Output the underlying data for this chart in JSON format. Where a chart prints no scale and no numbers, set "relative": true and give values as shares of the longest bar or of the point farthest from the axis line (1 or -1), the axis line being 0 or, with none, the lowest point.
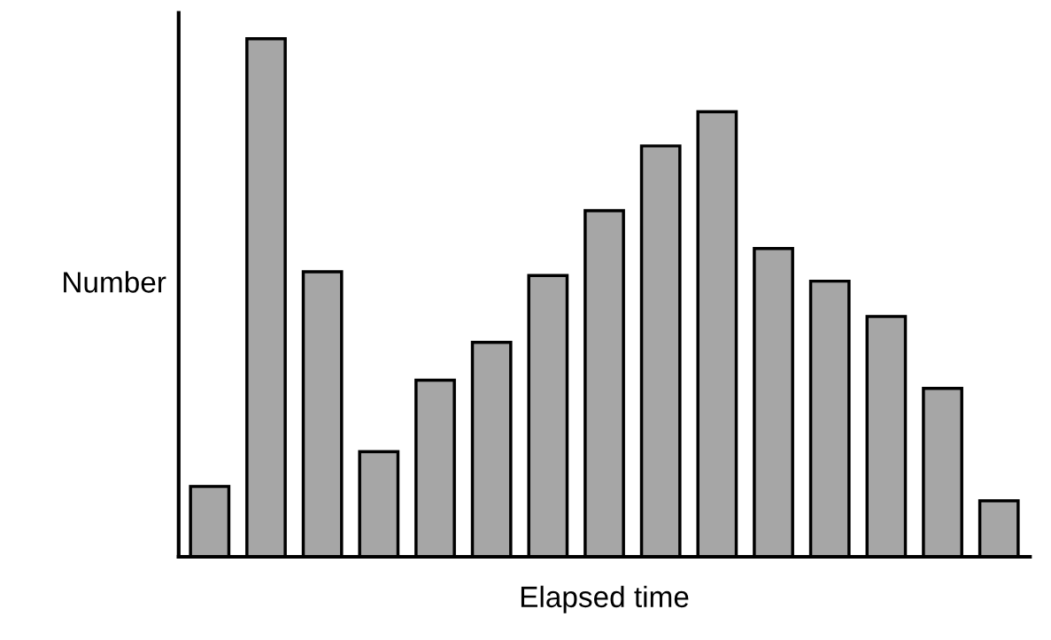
{
  "chart_data": {
    "type": "bar",
    "relative": true,
    "xlabel": "Elapsed time",
    "ylabel": "Number",
    "categories": [
      null,
      null,
      null,
      null,
      null,
      null,
      null,
      null,
      null,
      null,
      null,
      null,
      null,
      null,
      null
    ],
    "values": [
      0.136,
      1,
      0.55,
      0.203,
      0.341,
      0.414,
      0.543,
      0.668,
      0.793,
      0.859,
      0.595,
      0.532,
      0.464,
      0.325,
      0.108
    ],
    "color": "#a6a6a6",
    "grid": false,
    "legend": false
  }
}
